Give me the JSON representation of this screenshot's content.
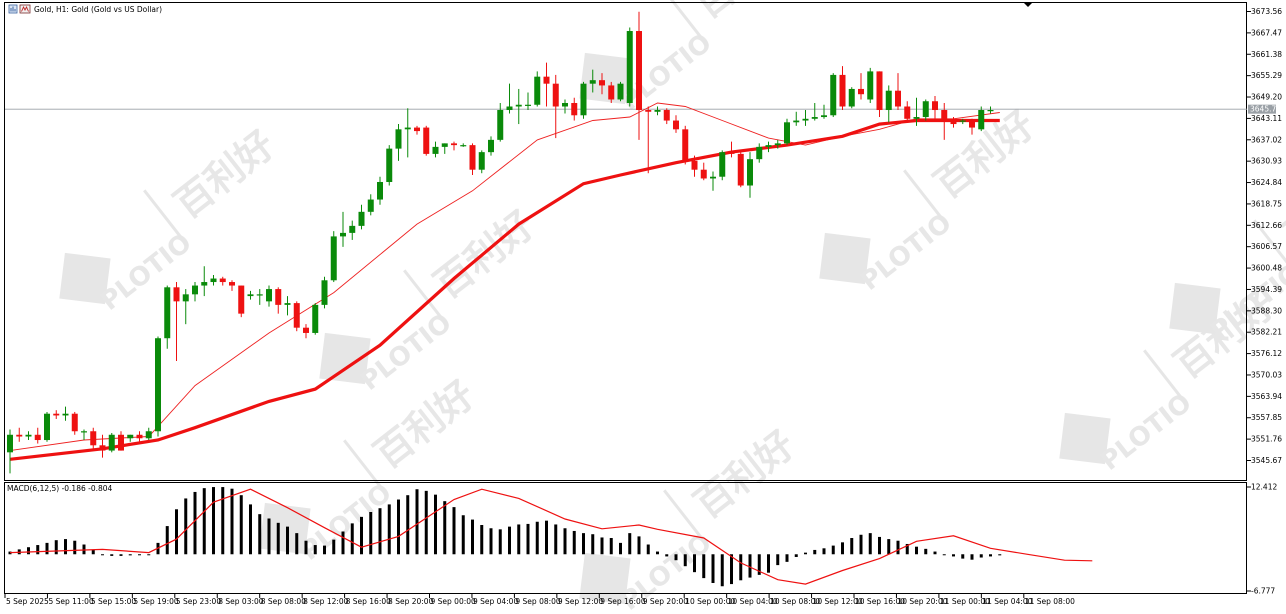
{
  "window": {
    "title": "Gold, H1:  Gold (Gold vs US Dollar)"
  },
  "colors": {
    "bull": "#0a8a0a",
    "bear": "#ee1111",
    "ma_fast": "#ee2222",
    "ma_slow": "#ee1111",
    "grid": "#888888",
    "bid_line": "#9aa0a6",
    "bid_label_bg": "#9aa0a6",
    "watermark": "#e6e6e6"
  },
  "watermark": {
    "brand": "PLOTIO",
    "cn": "百利好"
  },
  "price_axis": {
    "labels": [
      "3673.56",
      "3667.47",
      "3661.38",
      "3655.29",
      "3649.20",
      "3643.11",
      "3637.02",
      "3630.93",
      "3624.84",
      "3618.75",
      "3612.66",
      "3606.57",
      "3600.48",
      "3594.39",
      "3588.30",
      "3582.21",
      "3576.12",
      "3570.03",
      "3563.94",
      "3557.85",
      "3551.76",
      "3545.67"
    ],
    "current_price_label": "3645.74"
  },
  "macd": {
    "header": "MACD(6,12,5) -0.186 -0.804",
    "axis_top": "12.412",
    "axis_bottom": "-6.777"
  },
  "time_axis": {
    "labels": [
      "5 Sep 2025",
      "5 Sep 11:00",
      "5 Sep 15:00",
      "5 Sep 19:00",
      "5 Sep 23:00",
      "8 Sep 03:00",
      "8 Sep 08:00",
      "8 Sep 12:00",
      "8 Sep 16:00",
      "8 Sep 20:00",
      "9 Sep 00:00",
      "9 Sep 04:00",
      "9 Sep 08:00",
      "9 Sep 12:00",
      "9 Sep 16:00",
      "9 Sep 20:00",
      "10 Sep 00:00",
      "10 Sep 04:00",
      "10 Sep 08:00",
      "10 Sep 12:00",
      "10 Sep 16:00",
      "10 Sep 20:00",
      "11 Sep 00:00",
      "11 Sep 04:00",
      "11 Sep 08:00"
    ]
  },
  "chart_data": {
    "type": "candlestick",
    "symbol": "Gold",
    "timeframe": "H1",
    "ylim": [
      3543.5,
      3675.5
    ],
    "bid_price": 3645.74,
    "candles": [
      {
        "o": 3548.0,
        "h": 3554.5,
        "l": 3542.0,
        "c": 3553.0
      },
      {
        "o": 3553.0,
        "h": 3555.0,
        "l": 3551.0,
        "c": 3552.5
      },
      {
        "o": 3552.5,
        "h": 3554.0,
        "l": 3551.5,
        "c": 3553.0
      },
      {
        "o": 3553.0,
        "h": 3555.0,
        "l": 3550.5,
        "c": 3551.5
      },
      {
        "o": 3551.5,
        "h": 3559.5,
        "l": 3551.0,
        "c": 3559.0
      },
      {
        "o": 3559.0,
        "h": 3560.0,
        "l": 3557.5,
        "c": 3558.5
      },
      {
        "o": 3558.5,
        "h": 3561.0,
        "l": 3557.0,
        "c": 3559.0
      },
      {
        "o": 3559.0,
        "h": 3559.5,
        "l": 3553.0,
        "c": 3554.0
      },
      {
        "o": 3554.0,
        "h": 3554.5,
        "l": 3551.5,
        "c": 3554.0
      },
      {
        "o": 3554.0,
        "h": 3555.0,
        "l": 3549.0,
        "c": 3550.0
      },
      {
        "o": 3550.0,
        "h": 3553.0,
        "l": 3546.5,
        "c": 3548.5
      },
      {
        "o": 3548.5,
        "h": 3553.5,
        "l": 3548.0,
        "c": 3553.0
      },
      {
        "o": 3553.0,
        "h": 3554.0,
        "l": 3548.5,
        "c": 3548.5
      },
      {
        "o": 3552.0,
        "h": 3553.0,
        "l": 3551.0,
        "c": 3553.0
      },
      {
        "o": 3553.0,
        "h": 3554.0,
        "l": 3551.0,
        "c": 3552.0
      },
      {
        "o": 3552.0,
        "h": 3555.0,
        "l": 3551.5,
        "c": 3554.0
      },
      {
        "o": 3554.0,
        "h": 3581.0,
        "l": 3552.5,
        "c": 3580.5
      },
      {
        "o": 3580.5,
        "h": 3595.5,
        "l": 3577.5,
        "c": 3595.0
      },
      {
        "o": 3595.0,
        "h": 3596.5,
        "l": 3574.0,
        "c": 3591.0
      },
      {
        "o": 3591.0,
        "h": 3594.5,
        "l": 3584.5,
        "c": 3593.0
      },
      {
        "o": 3593.0,
        "h": 3596.5,
        "l": 3591.0,
        "c": 3595.5
      },
      {
        "o": 3595.5,
        "h": 3601.0,
        "l": 3592.5,
        "c": 3596.5
      },
      {
        "o": 3596.5,
        "h": 3598.5,
        "l": 3595.5,
        "c": 3597.5
      },
      {
        "o": 3597.5,
        "h": 3598.0,
        "l": 3595.5,
        "c": 3596.5
      },
      {
        "o": 3596.5,
        "h": 3597.0,
        "l": 3594.0,
        "c": 3595.5
      },
      {
        "o": 3595.5,
        "h": 3595.5,
        "l": 3586.5,
        "c": 3587.5
      },
      {
        "o": 3592.5,
        "h": 3594.0,
        "l": 3591.5,
        "c": 3593.0
      },
      {
        "o": 3593.0,
        "h": 3594.5,
        "l": 3590.0,
        "c": 3593.0
      },
      {
        "o": 3591.0,
        "h": 3595.5,
        "l": 3589.5,
        "c": 3594.5
      },
      {
        "o": 3594.5,
        "h": 3595.0,
        "l": 3587.5,
        "c": 3590.0
      },
      {
        "o": 3590.0,
        "h": 3592.5,
        "l": 3587.0,
        "c": 3590.5
      },
      {
        "o": 3590.5,
        "h": 3591.0,
        "l": 3582.5,
        "c": 3583.5
      },
      {
        "o": 3583.5,
        "h": 3584.5,
        "l": 3580.5,
        "c": 3582.0
      },
      {
        "o": 3582.0,
        "h": 3590.5,
        "l": 3581.5,
        "c": 3590.0
      },
      {
        "o": 3590.0,
        "h": 3598.0,
        "l": 3589.0,
        "c": 3597.0
      },
      {
        "o": 3597.0,
        "h": 3611.0,
        "l": 3596.5,
        "c": 3609.5
      },
      {
        "o": 3609.5,
        "h": 3616.5,
        "l": 3606.5,
        "c": 3610.5
      },
      {
        "o": 3610.5,
        "h": 3614.0,
        "l": 3608.5,
        "c": 3612.5
      },
      {
        "o": 3612.5,
        "h": 3618.5,
        "l": 3611.5,
        "c": 3616.5
      },
      {
        "o": 3616.5,
        "h": 3621.5,
        "l": 3615.5,
        "c": 3620.0
      },
      {
        "o": 3620.0,
        "h": 3626.5,
        "l": 3618.5,
        "c": 3625.0
      },
      {
        "o": 3625.0,
        "h": 3635.5,
        "l": 3624.0,
        "c": 3634.5
      },
      {
        "o": 3634.5,
        "h": 3641.5,
        "l": 3631.0,
        "c": 3640.0
      },
      {
        "o": 3640.0,
        "h": 3646.0,
        "l": 3632.0,
        "c": 3640.5
      },
      {
        "o": 3640.5,
        "h": 3641.0,
        "l": 3638.5,
        "c": 3639.5
      },
      {
        "o": 3640.5,
        "h": 3641.0,
        "l": 3632.5,
        "c": 3633.0
      },
      {
        "o": 3633.0,
        "h": 3636.5,
        "l": 3632.0,
        "c": 3635.0
      },
      {
        "o": 3635.0,
        "h": 3636.0,
        "l": 3633.0,
        "c": 3636.0
      },
      {
        "o": 3636.0,
        "h": 3636.5,
        "l": 3634.0,
        "c": 3635.5
      },
      {
        "o": 3635.5,
        "h": 3636.0,
        "l": 3635.0,
        "c": 3635.5
      },
      {
        "o": 3635.5,
        "h": 3636.0,
        "l": 3627.0,
        "c": 3628.5
      },
      {
        "o": 3628.5,
        "h": 3634.0,
        "l": 3627.5,
        "c": 3633.5
      },
      {
        "o": 3633.5,
        "h": 3638.0,
        "l": 3632.5,
        "c": 3637.0
      },
      {
        "o": 3637.0,
        "h": 3647.5,
        "l": 3636.5,
        "c": 3645.5
      },
      {
        "o": 3645.5,
        "h": 3653.0,
        "l": 3644.5,
        "c": 3646.5
      },
      {
        "o": 3646.5,
        "h": 3651.5,
        "l": 3641.5,
        "c": 3647.0
      },
      {
        "o": 3647.0,
        "h": 3650.5,
        "l": 3645.5,
        "c": 3647.0
      },
      {
        "o": 3647.0,
        "h": 3656.5,
        "l": 3646.5,
        "c": 3655.0
      },
      {
        "o": 3655.0,
        "h": 3659.0,
        "l": 3646.5,
        "c": 3653.0
      },
      {
        "o": 3653.0,
        "h": 3655.5,
        "l": 3637.5,
        "c": 3646.5
      },
      {
        "o": 3646.5,
        "h": 3648.5,
        "l": 3644.5,
        "c": 3647.5
      },
      {
        "o": 3647.5,
        "h": 3649.0,
        "l": 3642.5,
        "c": 3644.0
      },
      {
        "o": 3644.0,
        "h": 3653.5,
        "l": 3643.0,
        "c": 3653.0
      },
      {
        "o": 3653.0,
        "h": 3657.0,
        "l": 3650.5,
        "c": 3654.0
      },
      {
        "o": 3654.0,
        "h": 3656.0,
        "l": 3650.0,
        "c": 3652.5
      },
      {
        "o": 3652.5,
        "h": 3653.5,
        "l": 3647.5,
        "c": 3648.5
      },
      {
        "o": 3648.5,
        "h": 3653.5,
        "l": 3648.0,
        "c": 3653.0
      },
      {
        "o": 3647.5,
        "h": 3669.0,
        "l": 3646.5,
        "c": 3668.0
      },
      {
        "o": 3668.0,
        "h": 3673.5,
        "l": 3637.0,
        "c": 3645.5
      },
      {
        "o": 3645.5,
        "h": 3646.5,
        "l": 3627.5,
        "c": 3645.0
      },
      {
        "o": 3645.0,
        "h": 3646.5,
        "l": 3644.0,
        "c": 3645.5
      },
      {
        "o": 3645.5,
        "h": 3646.0,
        "l": 3641.5,
        "c": 3642.5
      },
      {
        "o": 3642.5,
        "h": 3644.0,
        "l": 3639.0,
        "c": 3640.0
      },
      {
        "o": 3640.0,
        "h": 3641.0,
        "l": 3630.0,
        "c": 3631.0
      },
      {
        "o": 3631.0,
        "h": 3632.5,
        "l": 3626.5,
        "c": 3628.5
      },
      {
        "o": 3628.5,
        "h": 3630.5,
        "l": 3625.5,
        "c": 3626.0
      },
      {
        "o": 3626.0,
        "h": 3628.0,
        "l": 3622.5,
        "c": 3626.5
      },
      {
        "o": 3626.5,
        "h": 3634.0,
        "l": 3625.5,
        "c": 3633.5
      },
      {
        "o": 3633.5,
        "h": 3636.5,
        "l": 3632.0,
        "c": 3633.0
      },
      {
        "o": 3633.0,
        "h": 3634.0,
        "l": 3623.5,
        "c": 3624.0
      },
      {
        "o": 3624.0,
        "h": 3633.5,
        "l": 3620.5,
        "c": 3631.5
      },
      {
        "o": 3631.5,
        "h": 3636.0,
        "l": 3630.5,
        "c": 3635.0
      },
      {
        "o": 3635.0,
        "h": 3636.5,
        "l": 3633.5,
        "c": 3635.5
      },
      {
        "o": 3635.5,
        "h": 3637.0,
        "l": 3634.5,
        "c": 3636.0
      },
      {
        "o": 3636.0,
        "h": 3643.0,
        "l": 3635.5,
        "c": 3642.0
      },
      {
        "o": 3642.0,
        "h": 3645.0,
        "l": 3641.0,
        "c": 3642.5
      },
      {
        "o": 3642.5,
        "h": 3645.5,
        "l": 3641.0,
        "c": 3643.0
      },
      {
        "o": 3643.0,
        "h": 3647.5,
        "l": 3642.5,
        "c": 3643.5
      },
      {
        "o": 3643.5,
        "h": 3647.0,
        "l": 3643.0,
        "c": 3644.0
      },
      {
        "o": 3644.0,
        "h": 3656.0,
        "l": 3643.5,
        "c": 3655.5
      },
      {
        "o": 3655.5,
        "h": 3658.0,
        "l": 3645.5,
        "c": 3646.5
      },
      {
        "o": 3646.5,
        "h": 3652.0,
        "l": 3646.0,
        "c": 3651.5
      },
      {
        "o": 3651.5,
        "h": 3656.0,
        "l": 3648.5,
        "c": 3650.0
      },
      {
        "o": 3648.5,
        "h": 3657.5,
        "l": 3647.5,
        "c": 3656.5
      },
      {
        "o": 3656.5,
        "h": 3656.5,
        "l": 3643.5,
        "c": 3645.5
      },
      {
        "o": 3645.5,
        "h": 3652.5,
        "l": 3642.0,
        "c": 3651.0
      },
      {
        "o": 3651.0,
        "h": 3656.0,
        "l": 3645.5,
        "c": 3646.5
      },
      {
        "o": 3646.5,
        "h": 3648.0,
        "l": 3642.5,
        "c": 3643.0
      },
      {
        "o": 3643.0,
        "h": 3649.0,
        "l": 3641.0,
        "c": 3643.5
      },
      {
        "o": 3643.5,
        "h": 3648.5,
        "l": 3642.5,
        "c": 3648.0
      },
      {
        "o": 3648.0,
        "h": 3649.5,
        "l": 3643.0,
        "c": 3645.5
      },
      {
        "o": 3645.5,
        "h": 3647.5,
        "l": 3637.0,
        "c": 3643.0
      },
      {
        "o": 3643.0,
        "h": 3643.5,
        "l": 3640.5,
        "c": 3641.5
      },
      {
        "o": 3642.5,
        "h": 3643.0,
        "l": 3641.5,
        "c": 3642.5
      },
      {
        "o": 3642.5,
        "h": 3643.0,
        "l": 3638.5,
        "c": 3640.5
      },
      {
        "o": 3640.0,
        "h": 3646.5,
        "l": 3639.5,
        "c": 3645.5
      },
      {
        "o": 3645.5,
        "h": 3646.5,
        "l": 3644.5,
        "c": 3645.5
      }
    ],
    "ma_fast": [
      [
        0,
        3548.5
      ],
      [
        8,
        3551.5
      ],
      [
        15,
        3552.5
      ],
      [
        20,
        3567.0
      ],
      [
        28,
        3582.0
      ],
      [
        35,
        3593.5
      ],
      [
        44,
        3613.0
      ],
      [
        50,
        3622.5
      ],
      [
        57,
        3637.0
      ],
      [
        63,
        3642.5
      ],
      [
        67,
        3643.5
      ],
      [
        70,
        3647.5
      ],
      [
        73,
        3646.5
      ],
      [
        77,
        3642.5
      ],
      [
        82,
        3637.5
      ],
      [
        86,
        3635.5
      ],
      [
        90,
        3638.0
      ],
      [
        94,
        3640.0
      ],
      [
        98,
        3643.0
      ],
      [
        102,
        3643.0
      ],
      [
        107,
        3644.8
      ]
    ],
    "ma_slow": [
      [
        0,
        3546.0
      ],
      [
        10,
        3549.0
      ],
      [
        16,
        3551.5
      ],
      [
        20,
        3555.0
      ],
      [
        28,
        3562.5
      ],
      [
        33,
        3566.0
      ],
      [
        40,
        3578.5
      ],
      [
        48,
        3597.5
      ],
      [
        55,
        3613.0
      ],
      [
        62,
        3624.5
      ],
      [
        66,
        3627.0
      ],
      [
        72,
        3630.5
      ],
      [
        78,
        3633.5
      ],
      [
        84,
        3635.5
      ],
      [
        90,
        3638.0
      ],
      [
        94,
        3641.5
      ],
      [
        98,
        3642.5
      ],
      [
        103,
        3642.5
      ],
      [
        107,
        3642.5
      ]
    ],
    "macd_hist": [
      0.5,
      0.9,
      1.3,
      1.7,
      2.1,
      2.6,
      2.8,
      2.5,
      1.8,
      0.8,
      -0.1,
      -0.3,
      -0.3,
      -0.2,
      -0.1,
      0.0,
      2.1,
      5.2,
      8.3,
      10.3,
      11.5,
      12.2,
      12.4,
      12.4,
      12.1,
      10.9,
      9.2,
      7.4,
      6.6,
      5.8,
      5.1,
      3.9,
      2.5,
      1.7,
      1.6,
      2.7,
      4.2,
      5.7,
      6.9,
      7.8,
      8.5,
      9.2,
      10.1,
      10.9,
      12.0,
      11.7,
      11.0,
      9.8,
      8.7,
      7.2,
      6.4,
      5.4,
      4.8,
      4.6,
      5.1,
      5.5,
      5.6,
      6.0,
      6.2,
      5.5,
      4.8,
      4.3,
      3.9,
      3.7,
      3.1,
      3.0,
      2.1,
      3.9,
      3.3,
      1.8,
      0.5,
      -0.4,
      -1.1,
      -2.2,
      -3.3,
      -4.4,
      -5.3,
      -5.9,
      -5.5,
      -4.8,
      -4.3,
      -3.8,
      -3.4,
      -2.0,
      -1.4,
      -0.5,
      0.3,
      0.8,
      1.1,
      1.6,
      2.2,
      3.0,
      3.6,
      3.9,
      3.2,
      2.8,
      2.5,
      1.9,
      1.4,
      1.0,
      0.5,
      0.0,
      -0.4,
      -0.8,
      -1.0,
      -0.6,
      -0.4,
      -0.2
    ],
    "macd_signal": [
      [
        0,
        0.3
      ],
      [
        10,
        0.9
      ],
      [
        15,
        0.3
      ],
      [
        18,
        2.8
      ],
      [
        22,
        9.6
      ],
      [
        26,
        12.0
      ],
      [
        30,
        8.6
      ],
      [
        34,
        4.9
      ],
      [
        38,
        1.3
      ],
      [
        42,
        3.3
      ],
      [
        48,
        10.1
      ],
      [
        51,
        12.0
      ],
      [
        55,
        10.3
      ],
      [
        60,
        6.5
      ],
      [
        64,
        4.7
      ],
      [
        68,
        5.4
      ],
      [
        70,
        4.6
      ],
      [
        75,
        3.0
      ],
      [
        79,
        -1.6
      ],
      [
        83,
        -4.7
      ],
      [
        86,
        -5.5
      ],
      [
        90,
        -3.0
      ],
      [
        94,
        -0.8
      ],
      [
        98,
        2.4
      ],
      [
        102,
        3.4
      ],
      [
        106,
        1.1
      ],
      [
        110,
        0.0
      ],
      [
        114,
        -1.1
      ],
      [
        117,
        -1.2
      ]
    ],
    "macd_ylim": [
      -6.777,
      12.412
    ]
  }
}
